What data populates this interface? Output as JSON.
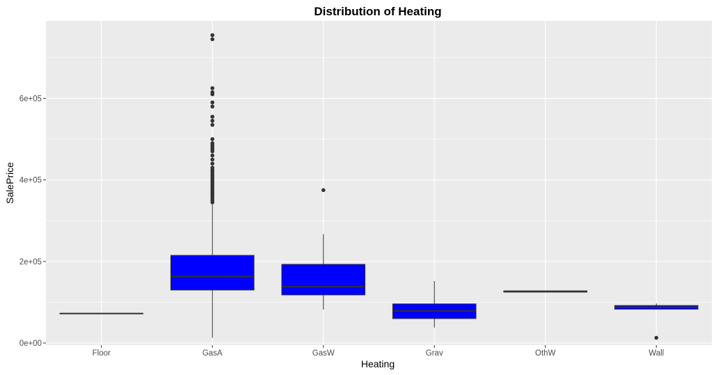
{
  "chart_data": {
    "type": "boxplot",
    "title": "Distribution of Heating",
    "xlabel": "Heating",
    "ylabel": "SalePrice",
    "ylim": [
      -5000,
      790000
    ],
    "y_ticks": [
      0,
      200000,
      400000,
      600000
    ],
    "y_tick_labels": [
      "0e+00",
      "2e+05",
      "4e+05",
      "6e+05"
    ],
    "grid": true,
    "colors": {
      "box_fill": "#0000FF",
      "panel": "#EBEBEB",
      "grid": "#FFFFFF",
      "line": "#333333"
    },
    "categories": [
      "Floor",
      "GasA",
      "GasW",
      "Grav",
      "OthW",
      "Wall"
    ],
    "boxes": [
      {
        "category": "Floor",
        "whisker_low": 72500,
        "q1": 72500,
        "median": 72500,
        "q3": 72500,
        "whisker_high": 72500,
        "outliers": []
      },
      {
        "category": "GasA",
        "whisker_low": 13000,
        "q1": 130000,
        "median": 163000,
        "q3": 215000,
        "whisker_high": 340000,
        "outliers": [
          345000,
          350000,
          355000,
          360000,
          365000,
          370000,
          375000,
          380000,
          385000,
          390000,
          395000,
          400000,
          405000,
          410000,
          415000,
          420000,
          425000,
          430000,
          440000,
          450000,
          460000,
          470000,
          475000,
          480000,
          485000,
          490000,
          500000,
          535000,
          545000,
          555000,
          580000,
          590000,
          610000,
          615000,
          625000,
          745000,
          755000
        ]
      },
      {
        "category": "GasW",
        "whisker_low": 82000,
        "q1": 118000,
        "median": 138000,
        "q3": 193000,
        "whisker_high": 267000,
        "outliers": [
          375000
        ]
      },
      {
        "category": "Grav",
        "whisker_low": 37900,
        "q1": 60000,
        "median": 79000,
        "q3": 96000,
        "whisker_high": 152000,
        "outliers": []
      },
      {
        "category": "OthW",
        "whisker_low": 125000,
        "q1": 125000,
        "median": 126000,
        "q3": 128000,
        "whisker_high": 128000,
        "outliers": []
      },
      {
        "category": "Wall",
        "whisker_low": 82000,
        "q1": 83000,
        "median": 88000,
        "q3": 92000,
        "whisker_high": 97000,
        "outliers": [
          12789
        ]
      }
    ]
  }
}
